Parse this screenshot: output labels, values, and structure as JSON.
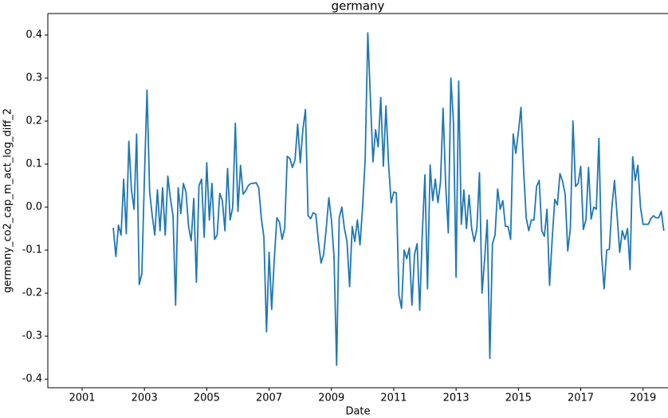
{
  "chart_data": {
    "type": "line",
    "title": "germany",
    "x_label": "Date",
    "y_label": "germany_co2_cap_m_act_log_diff_2",
    "xlim": [
      1999.9,
      2019.8
    ],
    "xticks": [
      2001,
      2003,
      2005,
      2007,
      2009,
      2011,
      2013,
      2015,
      2017,
      2019
    ],
    "ylim": [
      -0.42,
      0.45
    ],
    "yticks": [
      -0.4,
      -0.3,
      -0.2,
      -0.1,
      {
        "value": 0,
        "label": "0.0"
      },
      0.1,
      0.2,
      0.3,
      0.4
    ],
    "x": [
      2002,
      2002.083,
      2002.167,
      2002.25,
      2002.333,
      2002.417,
      2002.5,
      2002.583,
      2002.667,
      2002.75,
      2002.833,
      2002.917,
      2003,
      2003.083,
      2003.167,
      2003.25,
      2003.333,
      2003.417,
      2003.5,
      2003.583,
      2003.667,
      2003.75,
      2003.833,
      2003.917,
      2004,
      2004.083,
      2004.167,
      2004.25,
      2004.333,
      2004.417,
      2004.5,
      2004.583,
      2004.667,
      2004.75,
      2004.833,
      2004.917,
      2005,
      2005.083,
      2005.167,
      2005.25,
      2005.333,
      2005.417,
      2005.5,
      2005.583,
      2005.667,
      2005.75,
      2005.833,
      2005.917,
      2006,
      2006.083,
      2006.167,
      2006.25,
      2006.333,
      2006.417,
      2006.5,
      2006.583,
      2006.667,
      2006.75,
      2006.833,
      2006.917,
      2007,
      2007.083,
      2007.167,
      2007.25,
      2007.333,
      2007.417,
      2007.5,
      2007.583,
      2007.667,
      2007.75,
      2007.833,
      2007.917,
      2008,
      2008.083,
      2008.167,
      2008.25,
      2008.333,
      2008.417,
      2008.5,
      2008.583,
      2008.667,
      2008.75,
      2008.833,
      2008.917,
      2009,
      2009.083,
      2009.167,
      2009.25,
      2009.333,
      2009.417,
      2009.5,
      2009.583,
      2009.667,
      2009.75,
      2009.833,
      2009.917,
      2010,
      2010.083,
      2010.167,
      2010.25,
      2010.333,
      2010.417,
      2010.5,
      2010.583,
      2010.667,
      2010.75,
      2010.833,
      2010.917,
      2011,
      2011.083,
      2011.167,
      2011.25,
      2011.333,
      2011.417,
      2011.5,
      2011.583,
      2011.667,
      2011.75,
      2011.833,
      2011.917,
      2012,
      2012.083,
      2012.167,
      2012.25,
      2012.333,
      2012.417,
      2012.5,
      2012.583,
      2012.667,
      2012.75,
      2012.833,
      2012.917,
      2013,
      2013.083,
      2013.167,
      2013.25,
      2013.333,
      2013.417,
      2013.5,
      2013.583,
      2013.667,
      2013.75,
      2013.833,
      2013.917,
      2014,
      2014.083,
      2014.167,
      2014.25,
      2014.333,
      2014.417,
      2014.5,
      2014.583,
      2014.667,
      2014.75,
      2014.833,
      2014.917,
      2015,
      2015.083,
      2015.167,
      2015.25,
      2015.333,
      2015.417,
      2015.5,
      2015.583,
      2015.667,
      2015.75,
      2015.833,
      2015.917,
      2016,
      2016.083,
      2016.167,
      2016.25,
      2016.333,
      2016.417,
      2016.5,
      2016.583,
      2016.667,
      2016.75,
      2016.833,
      2016.917,
      2017,
      2017.083,
      2017.167,
      2017.25,
      2017.333,
      2017.417,
      2017.5,
      2017.583,
      2017.667,
      2017.75,
      2017.833,
      2017.917,
      2018,
      2018.083,
      2018.167,
      2018.25,
      2018.333,
      2018.417,
      2018.5,
      2018.583,
      2018.667,
      2018.75,
      2018.833,
      2018.917,
      2019,
      2019.083,
      2019.167,
      2019.25,
      2019.333,
      2019.417,
      2019.5,
      2019.583,
      2019.667
    ],
    "series": [
      {
        "color": "#1f77b4",
        "values": [
          -0.048,
          -0.115,
          -0.042,
          -0.065,
          0.065,
          -0.062,
          0.153,
          0.04,
          -0.005,
          0.17,
          -0.18,
          -0.155,
          0.07,
          0.272,
          0.035,
          -0.02,
          -0.065,
          0.04,
          -0.055,
          0.045,
          -0.065,
          0.072,
          0.02,
          -0.02,
          -0.228,
          0.045,
          -0.015,
          0.055,
          0.035,
          -0.045,
          -0.078,
          0.02,
          -0.175,
          0.05,
          0.065,
          -0.07,
          0.103,
          -0.03,
          0.055,
          -0.075,
          -0.065,
          0.032,
          0.015,
          -0.055,
          0.09,
          -0.03,
          0.0,
          0.195,
          -0.01,
          0.097,
          0.03,
          0.038,
          0.05,
          0.055,
          0.055,
          0.057,
          0.045,
          -0.025,
          -0.07,
          -0.29,
          -0.105,
          -0.238,
          -0.12,
          -0.025,
          -0.035,
          -0.075,
          -0.05,
          0.118,
          0.113,
          0.092,
          0.11,
          0.193,
          0.103,
          0.18,
          0.227,
          -0.02,
          -0.027,
          -0.013,
          -0.017,
          -0.08,
          -0.13,
          -0.11,
          -0.05,
          0.022,
          -0.03,
          -0.115,
          -0.368,
          -0.025,
          0.0,
          -0.05,
          -0.08,
          -0.185,
          -0.045,
          -0.08,
          -0.03,
          -0.088,
          0.0,
          0.11,
          0.405,
          0.255,
          0.105,
          0.18,
          0.14,
          0.255,
          0.095,
          0.235,
          0.1,
          0.01,
          0.035,
          0.033,
          -0.205,
          -0.235,
          -0.1,
          -0.12,
          -0.095,
          -0.228,
          -0.11,
          -0.085,
          -0.24,
          -0.06,
          0.075,
          -0.19,
          0.098,
          0.015,
          0.065,
          0.01,
          0.058,
          0.23,
          0.05,
          -0.06,
          0.3,
          0.195,
          -0.163,
          0.293,
          -0.04,
          0.04,
          -0.05,
          0.028,
          -0.05,
          -0.08,
          -0.05,
          0.08,
          -0.2,
          -0.12,
          -0.03,
          -0.352,
          -0.085,
          -0.065,
          0.042,
          -0.005,
          0.015,
          -0.045,
          -0.045,
          -0.075,
          0.17,
          0.125,
          0.175,
          0.232,
          0.085,
          -0.025,
          -0.055,
          -0.03,
          -0.03,
          0.048,
          0.062,
          -0.055,
          -0.068,
          -0.005,
          -0.182,
          -0.075,
          0.018,
          0.005,
          0.078,
          0.06,
          0.03,
          -0.102,
          -0.05,
          0.2,
          0.048,
          0.055,
          0.095,
          -0.052,
          -0.03,
          0.092,
          -0.028,
          0.0,
          -0.005,
          0.16,
          -0.11,
          -0.19,
          -0.1,
          -0.098,
          0.0,
          0.062,
          -0.02,
          -0.105,
          -0.055,
          -0.075,
          -0.05,
          -0.145,
          0.117,
          0.062,
          0.097,
          0.0,
          -0.04,
          -0.04,
          -0.04,
          -0.027,
          -0.02,
          -0.025,
          -0.025,
          -0.01,
          -0.055
        ]
      }
    ]
  }
}
